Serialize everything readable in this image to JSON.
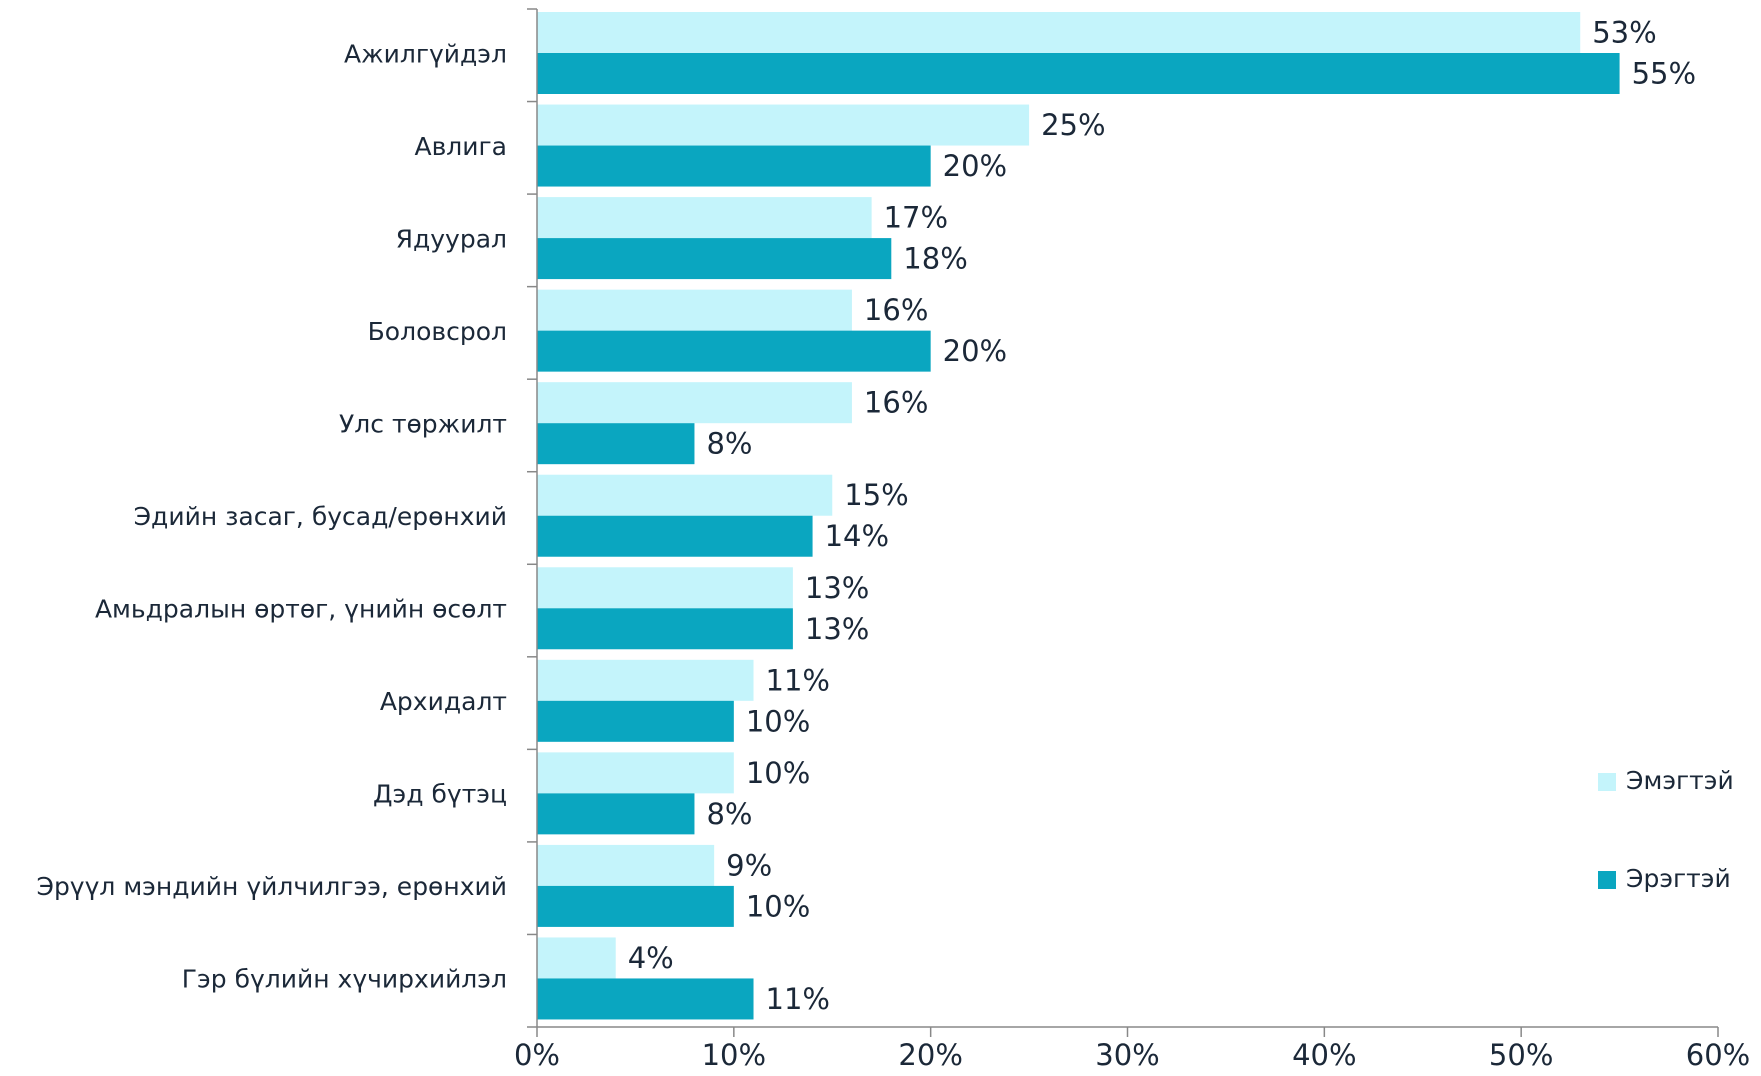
{
  "chart_data": {
    "type": "bar",
    "orientation": "horizontal",
    "categories": [
      "Ажилгүйдэл",
      "Авлига",
      "Ядуурал",
      "Боловсрол",
      "Улс төржилт",
      "Эдийн засаг, бусад/ерөнхий",
      "Амьдралын өртөг, үнийн өсөлт",
      "Архидалт",
      "Дэд бүтэц",
      "Эрүүл мэндийн үйлчилгээ, ерөнхий",
      "Гэр бүлийн хүчирхийлэл"
    ],
    "series": [
      {
        "name": "Эмэгтэй",
        "color": "#c4f4fb",
        "values": [
          53,
          25,
          17,
          16,
          16,
          15,
          13,
          11,
          10,
          9,
          4
        ],
        "value_labels": [
          "53%",
          "25%",
          "17%",
          "16%",
          "16%",
          "15%",
          "13%",
          "11%",
          "10%",
          "9%",
          "4%"
        ]
      },
      {
        "name": "Эрэгтэй",
        "color": "#0aa6c0",
        "values": [
          55,
          20,
          18,
          20,
          8,
          14,
          13,
          10,
          8,
          10,
          11
        ],
        "value_labels": [
          "55%",
          "20%",
          "18%",
          "20%",
          "8%",
          "14%",
          "13%",
          "10%",
          "8%",
          "10%",
          "11%"
        ]
      }
    ],
    "xlim": [
      0,
      60
    ],
    "xticks": [
      {
        "value": 0,
        "label": "0%"
      },
      {
        "value": 10,
        "label": "10%"
      },
      {
        "value": 20,
        "label": "20%"
      },
      {
        "value": 30,
        "label": "30%"
      },
      {
        "value": 40,
        "label": "40%"
      },
      {
        "value": 50,
        "label": "50%"
      },
      {
        "value": 60,
        "label": "60%"
      }
    ],
    "grid": false,
    "legend": "right"
  }
}
